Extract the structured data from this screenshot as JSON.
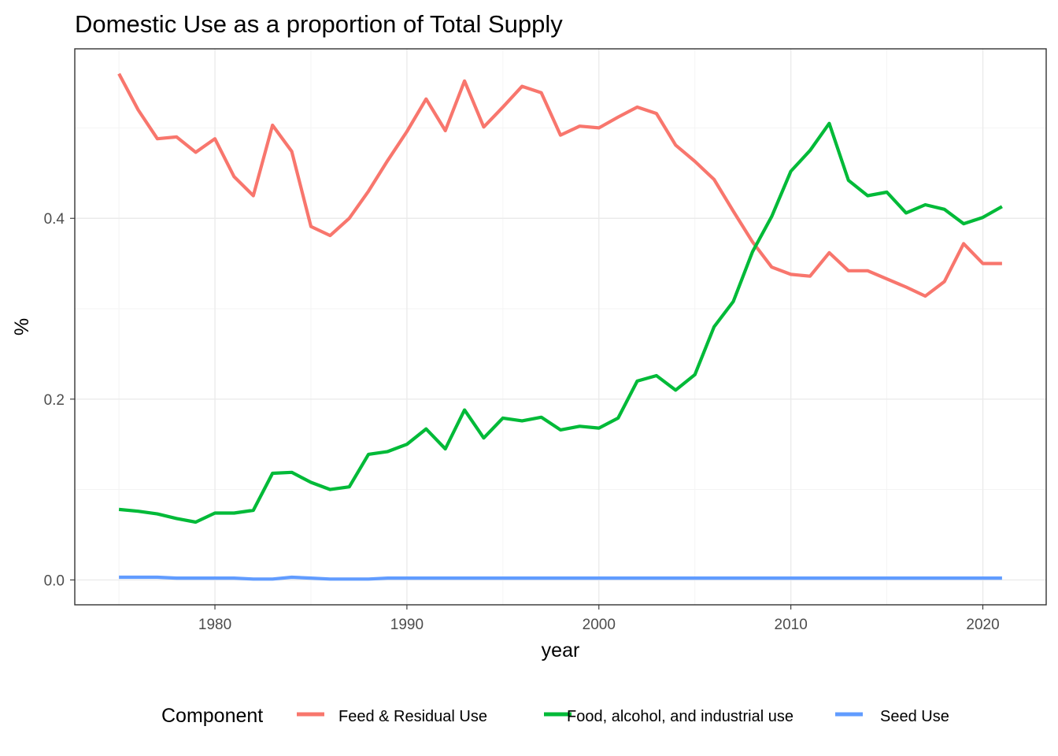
{
  "chart_data": {
    "type": "line",
    "title": "Domestic Use as a proportion of Total Supply",
    "xlabel": "year",
    "ylabel": "%",
    "xlim": [
      1972.7,
      2023.3
    ],
    "ylim": [
      -0.0275,
      0.5875
    ],
    "x_ticks": [
      1980,
      1990,
      2000,
      2010,
      2020
    ],
    "x_tick_labels": [
      "1980",
      "1990",
      "2000",
      "2010",
      "2020"
    ],
    "y_ticks": [
      0.0,
      0.2,
      0.4
    ],
    "y_tick_labels": [
      "0.0",
      "0.2",
      "0.4"
    ],
    "grid": true,
    "legend": {
      "title": "Component",
      "position": "bottom"
    },
    "x": [
      1975,
      1976,
      1977,
      1978,
      1979,
      1980,
      1981,
      1982,
      1983,
      1984,
      1985,
      1986,
      1987,
      1988,
      1989,
      1990,
      1991,
      1992,
      1993,
      1994,
      1995,
      1996,
      1997,
      1998,
      1999,
      2000,
      2001,
      2002,
      2003,
      2004,
      2005,
      2006,
      2007,
      2008,
      2009,
      2010,
      2011,
      2012,
      2013,
      2014,
      2015,
      2016,
      2017,
      2018,
      2019,
      2020,
      2021
    ],
    "series": [
      {
        "name": "Feed & Residual Use",
        "color": "#F8766D",
        "values": [
          0.56,
          0.52,
          0.488,
          0.49,
          0.473,
          0.488,
          0.446,
          0.425,
          0.503,
          0.474,
          0.391,
          0.381,
          0.4,
          0.43,
          0.464,
          0.496,
          0.532,
          0.497,
          0.552,
          0.501,
          0.523,
          0.546,
          0.539,
          0.492,
          0.502,
          0.5,
          0.512,
          0.523,
          0.516,
          0.481,
          0.463,
          0.443,
          0.408,
          0.374,
          0.346,
          0.338,
          0.336,
          0.362,
          0.342,
          0.342,
          0.333,
          0.324,
          0.314,
          0.33,
          0.372,
          0.35,
          0.35
        ]
      },
      {
        "name": "Food, alcohol, and industrial use",
        "color": "#00BA38",
        "values": [
          0.078,
          0.076,
          0.073,
          0.068,
          0.064,
          0.074,
          0.074,
          0.077,
          0.118,
          0.119,
          0.108,
          0.1,
          0.103,
          0.139,
          0.142,
          0.15,
          0.167,
          0.145,
          0.188,
          0.157,
          0.179,
          0.176,
          0.18,
          0.166,
          0.17,
          0.168,
          0.179,
          0.22,
          0.226,
          0.21,
          0.227,
          0.28,
          0.308,
          0.363,
          0.402,
          0.452,
          0.475,
          0.505,
          0.442,
          0.425,
          0.429,
          0.406,
          0.415,
          0.41,
          0.394,
          0.401,
          0.413
        ]
      },
      {
        "name": "Seed Use",
        "color": "#619CFF",
        "values": [
          0.003,
          0.003,
          0.003,
          0.002,
          0.002,
          0.002,
          0.002,
          0.001,
          0.001,
          0.003,
          0.002,
          0.001,
          0.001,
          0.001,
          0.002,
          0.002,
          0.002,
          0.002,
          0.002,
          0.002,
          0.002,
          0.002,
          0.002,
          0.002,
          0.002,
          0.002,
          0.002,
          0.002,
          0.002,
          0.002,
          0.002,
          0.002,
          0.002,
          0.002,
          0.002,
          0.002,
          0.002,
          0.002,
          0.002,
          0.002,
          0.002,
          0.002,
          0.002,
          0.002,
          0.002,
          0.002,
          0.002
        ]
      }
    ]
  }
}
